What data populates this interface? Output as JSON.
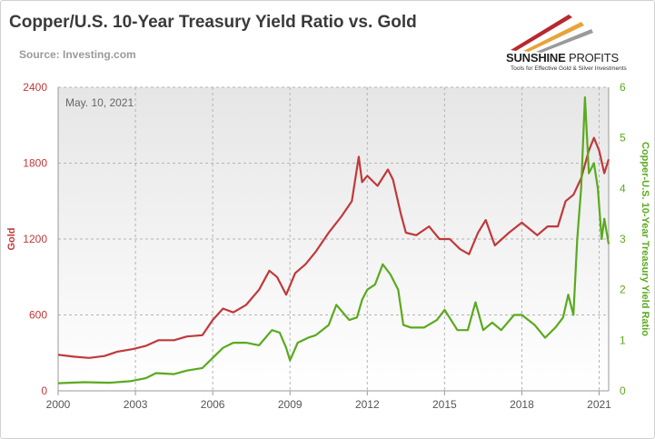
{
  "header": {
    "title": "Copper/U.S. 10-Year Treasury Yield Ratio vs. Gold",
    "source": "Source: Investing.com"
  },
  "logo": {
    "name_bold": "SUNSHINE",
    "name_light": " PROFITS",
    "tagline": "Tools for Effective Gold & Silver Investments"
  },
  "colors": {
    "gold": "#c0393b",
    "ratio": "#5aaa1e",
    "axis_left": "#c0393b",
    "axis_right": "#5aaa1e",
    "grid": "#b4b4b4"
  },
  "chart_data": {
    "type": "line",
    "annotation": "May. 10, 2021",
    "xlabel": "",
    "ylabel_left": "Gold",
    "ylabel_right": "Copper-U.S. 10-Year Treasury Yield Ratio",
    "xlim": [
      2000,
      2021.37
    ],
    "ylim_left": [
      0,
      2400
    ],
    "ylim_right": [
      0,
      6
    ],
    "x_ticks": [
      2000,
      2003,
      2006,
      2009,
      2012,
      2015,
      2018,
      2021
    ],
    "x_tick_labels": [
      "2000",
      "2003",
      "2006",
      "2009",
      "2012",
      "2015",
      "2018",
      "2021"
    ],
    "y_left_ticks": [
      0,
      600,
      1200,
      1800,
      2400
    ],
    "y_left_tick_labels": [
      "0",
      "600",
      "1200",
      "1800",
      "2400"
    ],
    "y_right_ticks": [
      0,
      1,
      2,
      3,
      4,
      5,
      6
    ],
    "y_right_tick_labels": [
      "0",
      "1",
      "2",
      "3",
      "4",
      "5",
      "6"
    ],
    "grid": true,
    "series": [
      {
        "name": "Gold",
        "axis": "left",
        "x": [
          2000.0,
          2000.6,
          2001.2,
          2001.8,
          2002.3,
          2002.9,
          2003.4,
          2003.9,
          2004.5,
          2005.0,
          2005.6,
          2006.0,
          2006.4,
          2006.8,
          2007.3,
          2007.8,
          2008.2,
          2008.5,
          2008.85,
          2009.2,
          2009.6,
          2010.0,
          2010.5,
          2011.0,
          2011.4,
          2011.67,
          2011.8,
          2012.0,
          2012.4,
          2012.8,
          2013.0,
          2013.3,
          2013.5,
          2013.9,
          2014.4,
          2014.8,
          2015.2,
          2015.6,
          2015.95,
          2016.3,
          2016.6,
          2016.95,
          2017.5,
          2018.0,
          2018.6,
          2019.0,
          2019.4,
          2019.7,
          2020.0,
          2020.3,
          2020.6,
          2020.8,
          2021.0,
          2021.2,
          2021.37
        ],
        "values": [
          285,
          270,
          260,
          275,
          310,
          330,
          355,
          400,
          400,
          430,
          440,
          560,
          650,
          620,
          680,
          800,
          950,
          900,
          760,
          930,
          1000,
          1100,
          1250,
          1380,
          1500,
          1850,
          1650,
          1700,
          1620,
          1750,
          1670,
          1400,
          1250,
          1230,
          1300,
          1200,
          1200,
          1120,
          1080,
          1250,
          1350,
          1150,
          1250,
          1330,
          1230,
          1300,
          1300,
          1500,
          1550,
          1680,
          1900,
          2000,
          1900,
          1720,
          1830
        ]
      },
      {
        "name": "Copper-U.S. 10-Year Treasury Yield Ratio",
        "axis": "right",
        "x": [
          2000.0,
          2001.0,
          2002.0,
          2002.8,
          2003.4,
          2003.8,
          2004.5,
          2005.0,
          2005.6,
          2006.0,
          2006.4,
          2006.8,
          2007.3,
          2007.8,
          2008.3,
          2008.6,
          2008.85,
          2009.0,
          2009.3,
          2009.7,
          2010.0,
          2010.5,
          2010.8,
          2011.3,
          2011.6,
          2011.8,
          2012.0,
          2012.3,
          2012.6,
          2012.9,
          2013.2,
          2013.4,
          2013.7,
          2014.2,
          2014.7,
          2015.0,
          2015.5,
          2015.9,
          2016.2,
          2016.5,
          2016.85,
          2017.2,
          2017.7,
          2018.0,
          2018.5,
          2018.9,
          2019.3,
          2019.6,
          2019.8,
          2020.0,
          2020.15,
          2020.3,
          2020.45,
          2020.6,
          2020.8,
          2020.95,
          2021.1,
          2021.2,
          2021.37
        ],
        "values": [
          0.15,
          0.17,
          0.16,
          0.19,
          0.25,
          0.35,
          0.33,
          0.4,
          0.45,
          0.65,
          0.85,
          0.95,
          0.95,
          0.9,
          1.2,
          1.15,
          0.85,
          0.6,
          0.95,
          1.05,
          1.1,
          1.3,
          1.7,
          1.4,
          1.45,
          1.8,
          2.0,
          2.1,
          2.5,
          2.3,
          2.0,
          1.3,
          1.25,
          1.25,
          1.4,
          1.6,
          1.2,
          1.2,
          1.75,
          1.2,
          1.35,
          1.2,
          1.5,
          1.5,
          1.3,
          1.05,
          1.25,
          1.45,
          1.9,
          1.5,
          3.0,
          4.0,
          5.8,
          4.3,
          4.5,
          4.0,
          3.0,
          3.4,
          2.9
        ]
      }
    ]
  }
}
